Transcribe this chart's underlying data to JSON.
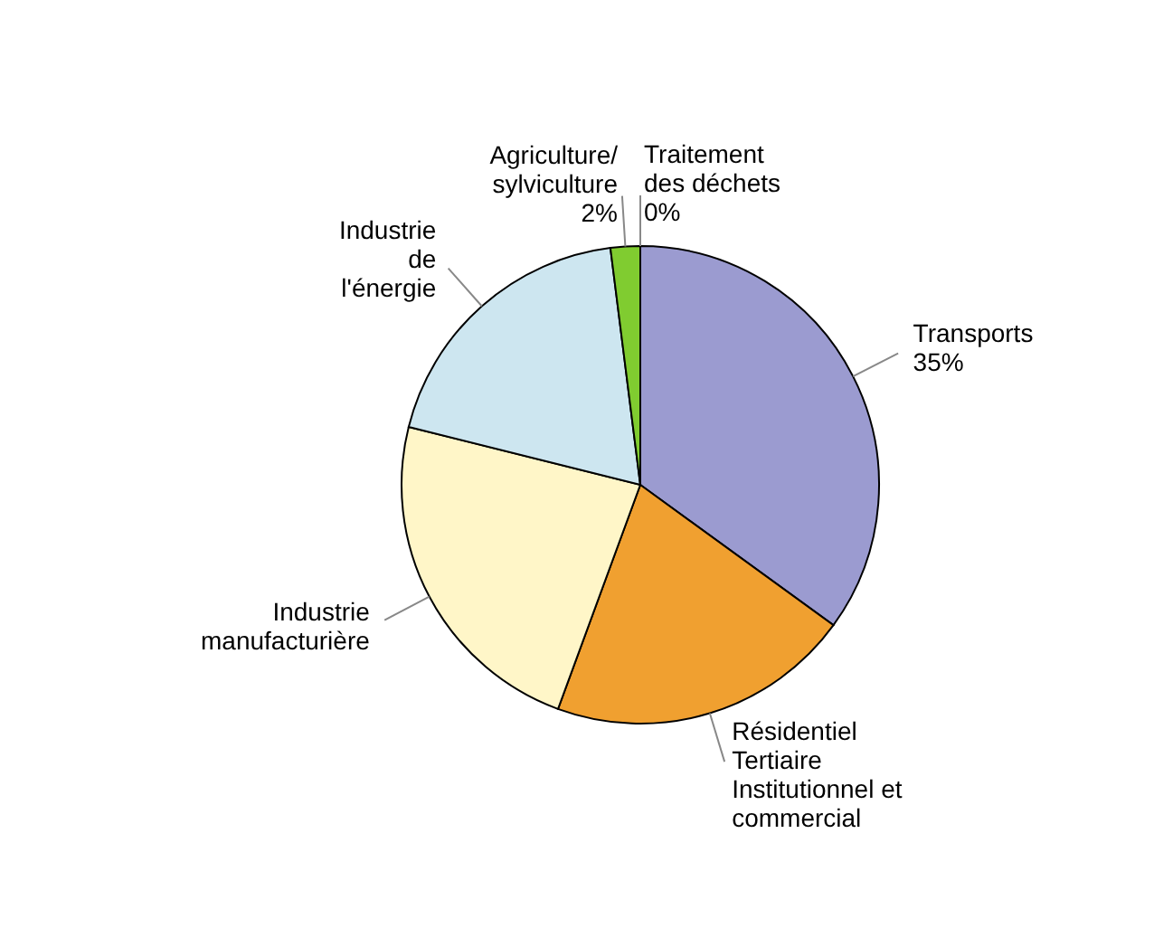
{
  "chart_data": {
    "type": "pie",
    "categories": [
      "Transports",
      "Résidentiel\nTertiaire\nInstitutionnel et\ncommercial",
      "Industrie\nmanufacturière",
      "Industrie\nde\nl'énergie",
      "Agriculture/\nsylviculture",
      "Traitement\ndes déchets"
    ],
    "values": [
      35,
      20.6,
      23.3,
      19.1,
      2,
      0
    ],
    "colors": [
      "#9b9bd0",
      "#f0a030",
      "#fff6c8",
      "#cde6f0",
      "#80cc30",
      "#b0b0b0"
    ],
    "value_labels": [
      "35%",
      null,
      null,
      null,
      "2%",
      "0%"
    ]
  }
}
